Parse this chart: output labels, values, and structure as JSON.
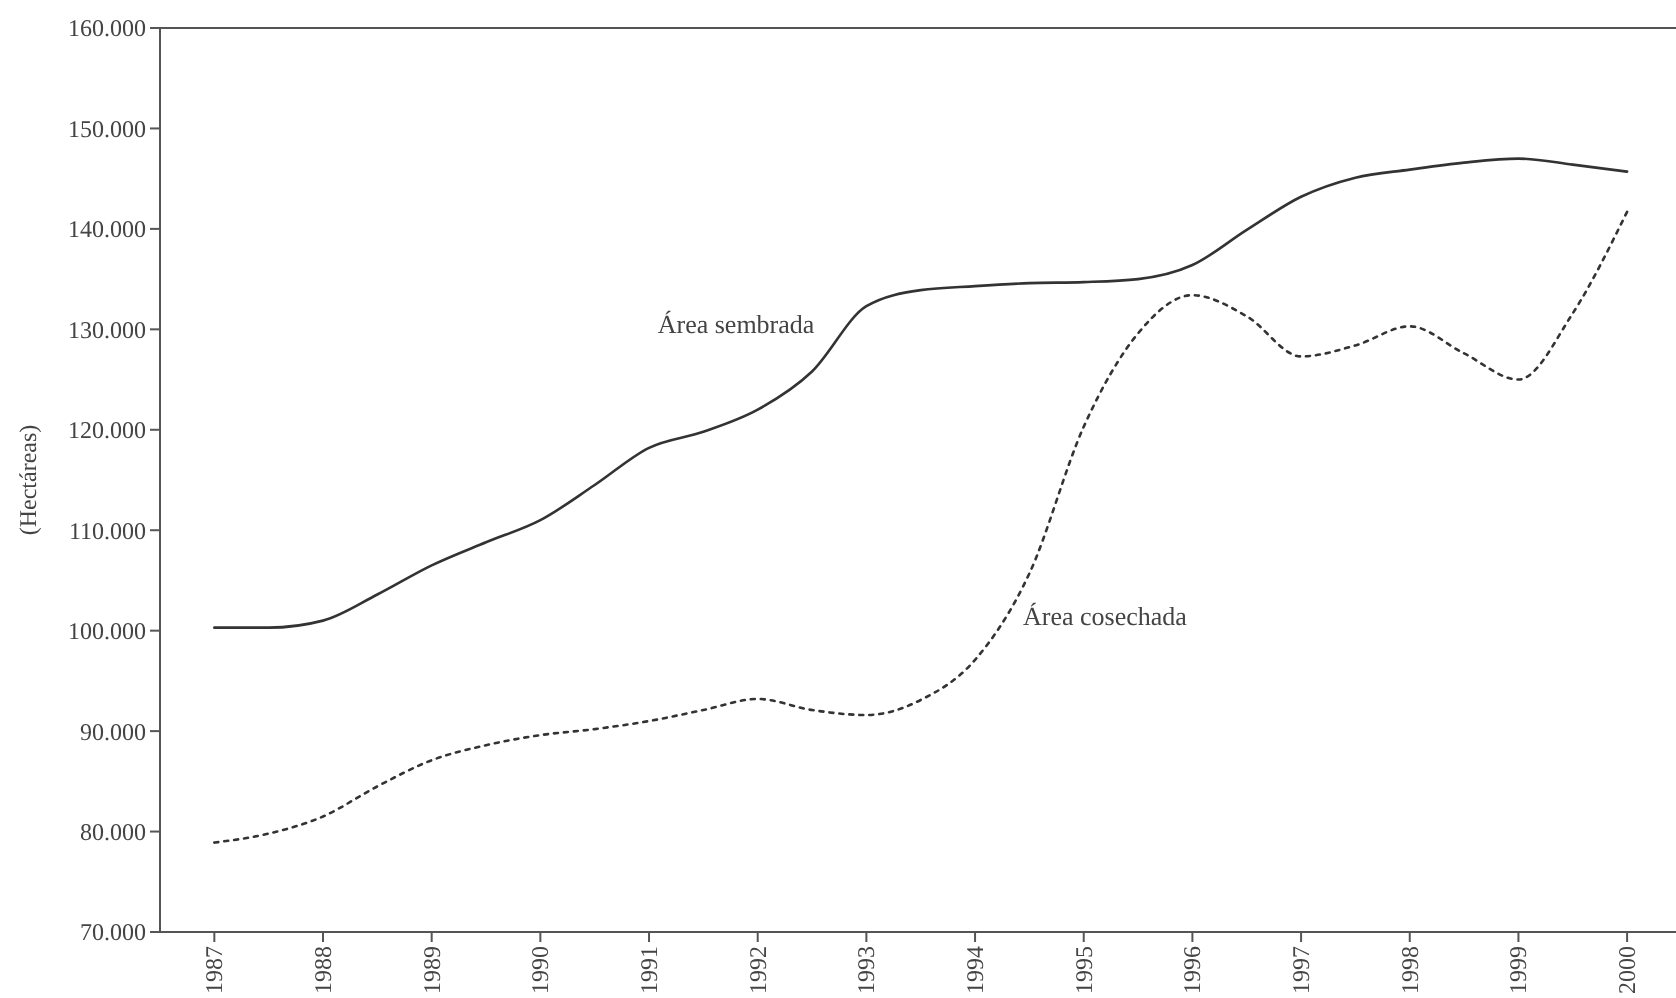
{
  "chart_data": {
    "type": "line",
    "ylabel": "(Hectáreas)",
    "x": [
      1987,
      1987.5,
      1988,
      1988.5,
      1989,
      1989.5,
      1990,
      1990.5,
      1991,
      1991.5,
      1992,
      1992.5,
      1993,
      1993.5,
      1994,
      1994.5,
      1995,
      1995.5,
      1996,
      1996.5,
      1997,
      1997.5,
      1998,
      1998.5,
      1999,
      1999.5,
      2000
    ],
    "series": [
      {
        "color": "#333333",
        "line_style": "solid",
        "values": [
          100300,
          100300,
          101000,
          103600,
          106500,
          108800,
          111000,
          114500,
          118200,
          119800,
          122000,
          125800,
          132300,
          133900,
          134300,
          134600,
          134700,
          135000,
          136400,
          139900,
          143200,
          145100,
          145900,
          146600,
          147000,
          146400,
          145700
        ]
      },
      {
        "color": "#333333",
        "line_style": "dotted",
        "values": [
          78900,
          79800,
          81500,
          84500,
          87100,
          88600,
          89600,
          90200,
          91000,
          92100,
          93200,
          92100,
          91600,
          93100,
          97100,
          105700,
          120300,
          129600,
          133400,
          131300,
          127300,
          128400,
          130300,
          127600,
          125000,
          131600,
          141700
        ]
      }
    ],
    "annotations": [
      "Área sembrada",
      "Área cosechada"
    ],
    "xlim": [
      1986.5,
      2000.45
    ],
    "xticks": [
      1987,
      1988,
      1989,
      1990,
      1991,
      1992,
      1993,
      1994,
      1995,
      1996,
      1997,
      1998,
      1999,
      2000
    ],
    "ylim": [
      70000,
      160000
    ],
    "yticks": [
      {
        "value": 70000,
        "label": "70.000"
      },
      {
        "value": 80000,
        "label": "80.000"
      },
      {
        "value": 90000,
        "label": "90.000"
      },
      {
        "value": 100000,
        "label": "100.000"
      },
      {
        "value": 110000,
        "label": "110.000"
      },
      {
        "value": 120000,
        "label": "120.000"
      },
      {
        "value": 130000,
        "label": "130.000"
      },
      {
        "value": 140000,
        "label": "140.000"
      },
      {
        "value": 150000,
        "label": "150.000"
      },
      {
        "value": 160000,
        "label": "160.000"
      }
    ],
    "grid": false
  }
}
